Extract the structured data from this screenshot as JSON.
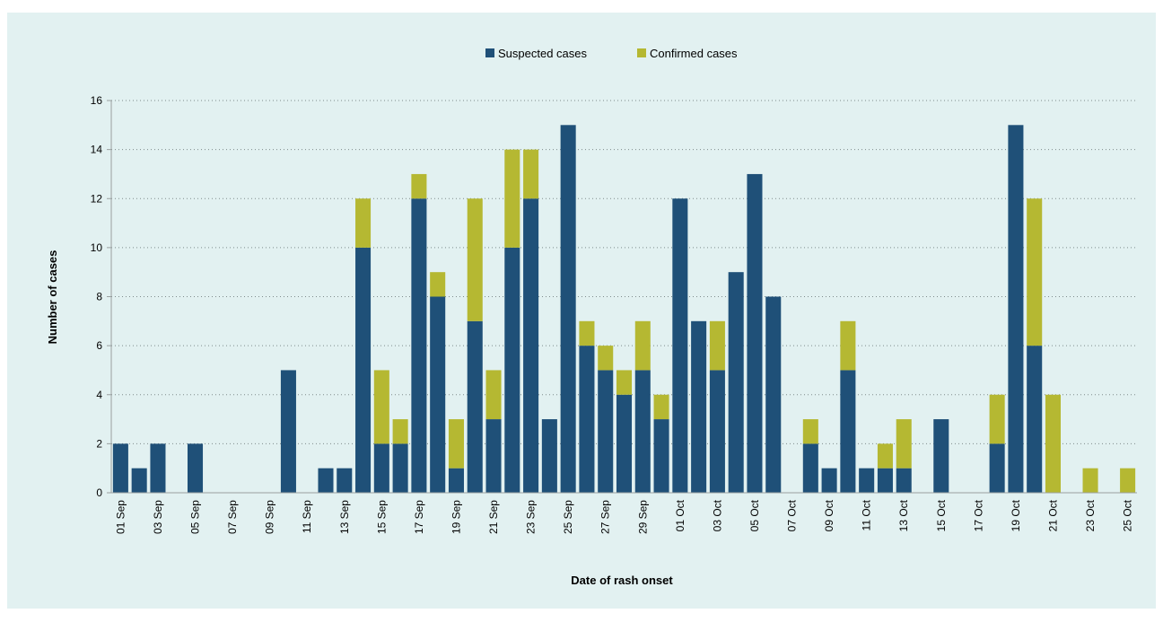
{
  "chart_data": {
    "type": "bar",
    "stacked": true,
    "xlabel": "Date of rash onset",
    "ylabel": "Number of cases",
    "ylim": [
      0,
      16
    ],
    "yticks": [
      0,
      2,
      4,
      6,
      8,
      10,
      12,
      14,
      16
    ],
    "grid": "horizontal dotted",
    "legend_position": "top-center",
    "categories": [
      "01 Sep",
      "02 Sep",
      "03 Sep",
      "04 Sep",
      "05 Sep",
      "06 Sep",
      "07 Sep",
      "08 Sep",
      "09 Sep",
      "10 Sep",
      "11 Sep",
      "12 Sep",
      "13 Sep",
      "14 Sep",
      "15 Sep",
      "16 Sep",
      "17 Sep",
      "18 Sep",
      "19 Sep",
      "20 Sep",
      "21 Sep",
      "22 Sep",
      "23 Sep",
      "24 Sep",
      "25 Sep",
      "26 Sep",
      "27 Sep",
      "28 Sep",
      "29 Sep",
      "30 Sep",
      "01 Oct",
      "02 Oct",
      "03 Oct",
      "04 Oct",
      "05 Oct",
      "06 Oct",
      "07 Oct",
      "08 Oct",
      "09 Oct",
      "10 Oct",
      "11 Oct",
      "12 Oct",
      "13 Oct",
      "14 Oct",
      "15 Oct",
      "16 Oct",
      "17 Oct",
      "18 Oct",
      "19 Oct",
      "20 Oct",
      "21 Oct",
      "22 Oct",
      "23 Oct",
      "24 Oct",
      "25 Oct"
    ],
    "xtick_labels": [
      "01 Sep",
      "03 Sep",
      "05 Sep",
      "07 Sep",
      "09 Sep",
      "11 Sep",
      "13 Sep",
      "15 Sep",
      "17 Sep",
      "19 Sep",
      "21 Sep",
      "23 Sep",
      "25 Sep",
      "27 Sep",
      "29 Sep",
      "01 Oct",
      "03 Oct",
      "05 Oct",
      "07 Oct",
      "09 Oct",
      "11 Oct",
      "13 Oct",
      "15 Oct",
      "17 Oct",
      "19 Oct",
      "21 Oct",
      "23 Oct",
      "25 Oct"
    ],
    "series": [
      {
        "name": "Suspected cases",
        "color": "#1f5078",
        "values": [
          2,
          1,
          2,
          0,
          2,
          0,
          0,
          0,
          0,
          5,
          0,
          1,
          1,
          10,
          2,
          2,
          12,
          8,
          1,
          7,
          3,
          10,
          12,
          3,
          15,
          6,
          5,
          4,
          5,
          3,
          12,
          7,
          5,
          9,
          13,
          8,
          0,
          2,
          1,
          5,
          1,
          1,
          1,
          0,
          3,
          0,
          0,
          2,
          15,
          6,
          0,
          0,
          0,
          0,
          0
        ]
      },
      {
        "name": "Confirmed cases",
        "color": "#b5b832",
        "values": [
          0,
          0,
          0,
          0,
          0,
          0,
          0,
          0,
          0,
          0,
          0,
          0,
          0,
          2,
          3,
          1,
          1,
          1,
          2,
          5,
          2,
          4,
          2,
          0,
          0,
          1,
          1,
          1,
          2,
          1,
          0,
          0,
          2,
          0,
          0,
          0,
          0,
          1,
          0,
          2,
          0,
          1,
          2,
          0,
          0,
          0,
          0,
          2,
          0,
          6,
          4,
          0,
          1,
          0,
          1
        ]
      }
    ]
  }
}
